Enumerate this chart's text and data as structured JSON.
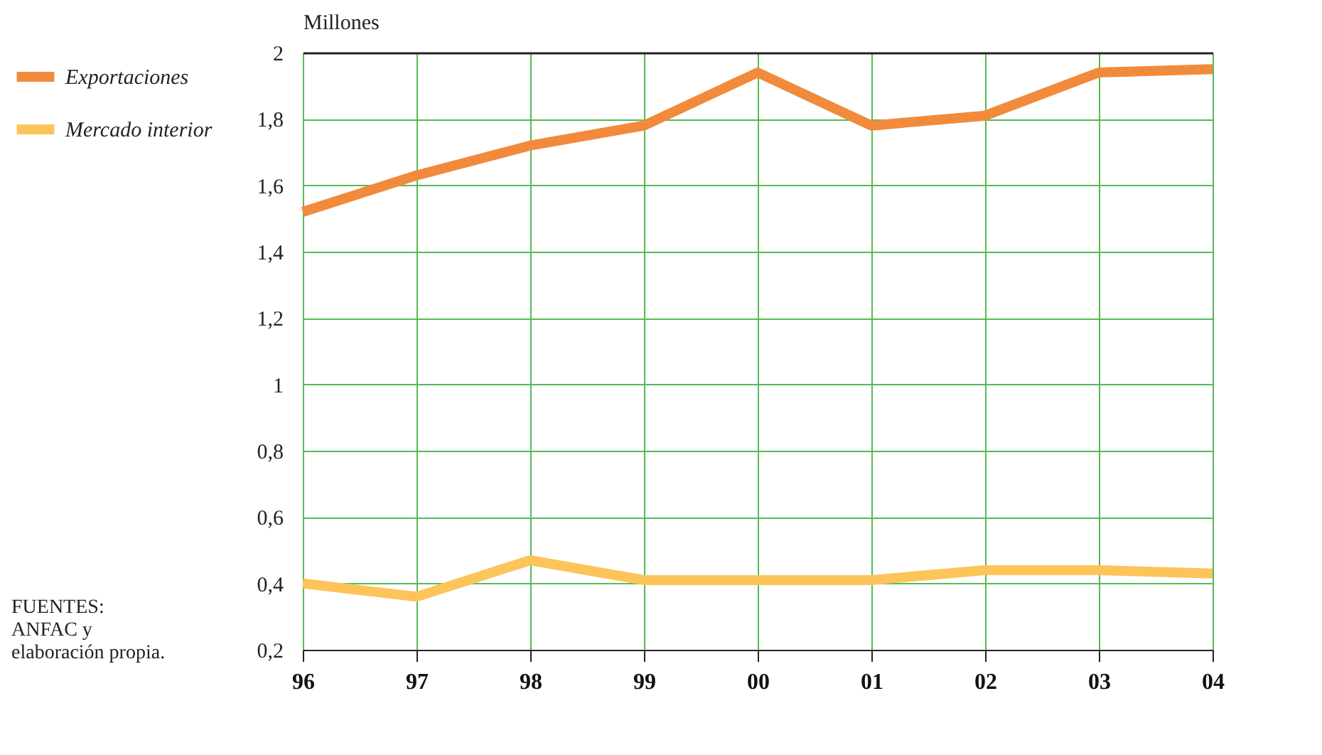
{
  "chart_data": {
    "type": "line",
    "ylabel": "Millones",
    "categories": [
      "96",
      "97",
      "98",
      "99",
      "00",
      "01",
      "02",
      "03",
      "04"
    ],
    "series": [
      {
        "name": "Exportaciones",
        "color": "#f28a3c",
        "values": [
          1.52,
          1.63,
          1.72,
          1.78,
          1.94,
          1.78,
          1.81,
          1.94,
          1.95
        ]
      },
      {
        "name": "Mercado interior",
        "color": "#fdc45a",
        "values": [
          0.4,
          0.36,
          0.47,
          0.41,
          0.41,
          0.41,
          0.44,
          0.44,
          0.43
        ]
      }
    ],
    "ylim": [
      0.2,
      2
    ],
    "yticks": [
      {
        "value": 0.2,
        "label": "0,2"
      },
      {
        "value": 0.4,
        "label": "0,4"
      },
      {
        "value": 0.6,
        "label": "0,6"
      },
      {
        "value": 0.8,
        "label": "0,8"
      },
      1,
      {
        "value": 1.2,
        "label": "1,2"
      },
      {
        "value": 1.4,
        "label": "1,4"
      },
      {
        "value": 1.6,
        "label": "1,6"
      },
      {
        "value": 1.8,
        "label": "1,8"
      },
      2
    ],
    "grid": true,
    "legend": "top left",
    "marker": "none",
    "line_style": "solid",
    "annotations": [
      "FUENTES: ANFAC y elaboración propia."
    ]
  }
}
